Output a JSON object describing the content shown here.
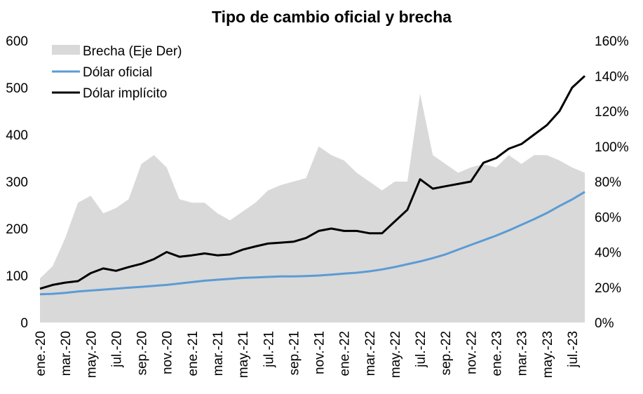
{
  "chart_data": {
    "type": "line",
    "title": "Tipo de cambio oficial y brecha",
    "x": [
      "2020-01",
      "2020-02",
      "2020-03",
      "2020-04",
      "2020-05",
      "2020-06",
      "2020-07",
      "2020-08",
      "2020-09",
      "2020-10",
      "2020-11",
      "2020-12",
      "2021-01",
      "2021-02",
      "2021-03",
      "2021-04",
      "2021-05",
      "2021-06",
      "2021-07",
      "2021-08",
      "2021-09",
      "2021-10",
      "2021-11",
      "2021-12",
      "2022-01",
      "2022-02",
      "2022-03",
      "2022-04",
      "2022-05",
      "2022-06",
      "2022-07",
      "2022-08",
      "2022-09",
      "2022-10",
      "2022-11",
      "2022-12",
      "2023-01",
      "2023-02",
      "2023-03",
      "2023-04",
      "2023-05",
      "2023-06",
      "2023-07",
      "2023-08"
    ],
    "x_tick_labels": [
      "ene.-20",
      "mar.-20",
      "may.-20",
      "jul.-20",
      "sep.-20",
      "nov.-20",
      "ene.-21",
      "mar.-21",
      "may.-21",
      "jul.-21",
      "sep.-21",
      "nov.-21",
      "ene.-22",
      "mar.-22",
      "may.-22",
      "jul.-22",
      "sep.-22",
      "nov.-22",
      "ene.-23",
      "mar.-23",
      "may.-23",
      "jul.-23"
    ],
    "y_left": {
      "ylim": [
        0,
        600
      ],
      "ticks": [
        "0",
        "100",
        "200",
        "300",
        "400",
        "500",
        "600"
      ]
    },
    "y_right": {
      "ylim": [
        0,
        160
      ],
      "ticks": [
        "0%",
        "20%",
        "40%",
        "60%",
        "80%",
        "100%",
        "120%",
        "140%",
        "160%"
      ]
    },
    "series": [
      {
        "name": "Brecha (Eje Der)",
        "axis": "right",
        "kind": "area",
        "color": "#d9d9d9",
        "values": [
          25,
          32,
          48,
          68,
          72,
          62,
          65,
          70,
          90,
          95,
          88,
          70,
          68,
          68,
          62,
          58,
          63,
          68,
          75,
          78,
          80,
          82,
          100,
          95,
          92,
          85,
          80,
          75,
          80,
          80,
          130,
          95,
          90,
          85,
          88,
          90,
          88,
          95,
          90,
          95,
          95,
          92,
          88,
          85
        ]
      },
      {
        "name": "Dólar oficial",
        "axis": "left",
        "kind": "line",
        "color": "#5b9bd5",
        "values": [
          60,
          61,
          63,
          66,
          68,
          70,
          72,
          74,
          76,
          78,
          80,
          83,
          86,
          89,
          91,
          93,
          95,
          96,
          97,
          98,
          98,
          99,
          100,
          102,
          104,
          106,
          109,
          113,
          118,
          124,
          130,
          137,
          145,
          155,
          165,
          175,
          185,
          196,
          208,
          220,
          233,
          248,
          262,
          278
        ]
      },
      {
        "name": "Dólar implícito",
        "axis": "left",
        "kind": "line",
        "color": "#000000",
        "values": [
          72,
          80,
          85,
          88,
          105,
          115,
          110,
          118,
          125,
          135,
          150,
          140,
          143,
          147,
          143,
          145,
          155,
          162,
          168,
          170,
          172,
          180,
          195,
          200,
          195,
          195,
          190,
          190,
          215,
          240,
          305,
          285,
          290,
          295,
          300,
          340,
          350,
          370,
          380,
          400,
          420,
          450,
          500,
          525
        ]
      }
    ]
  }
}
